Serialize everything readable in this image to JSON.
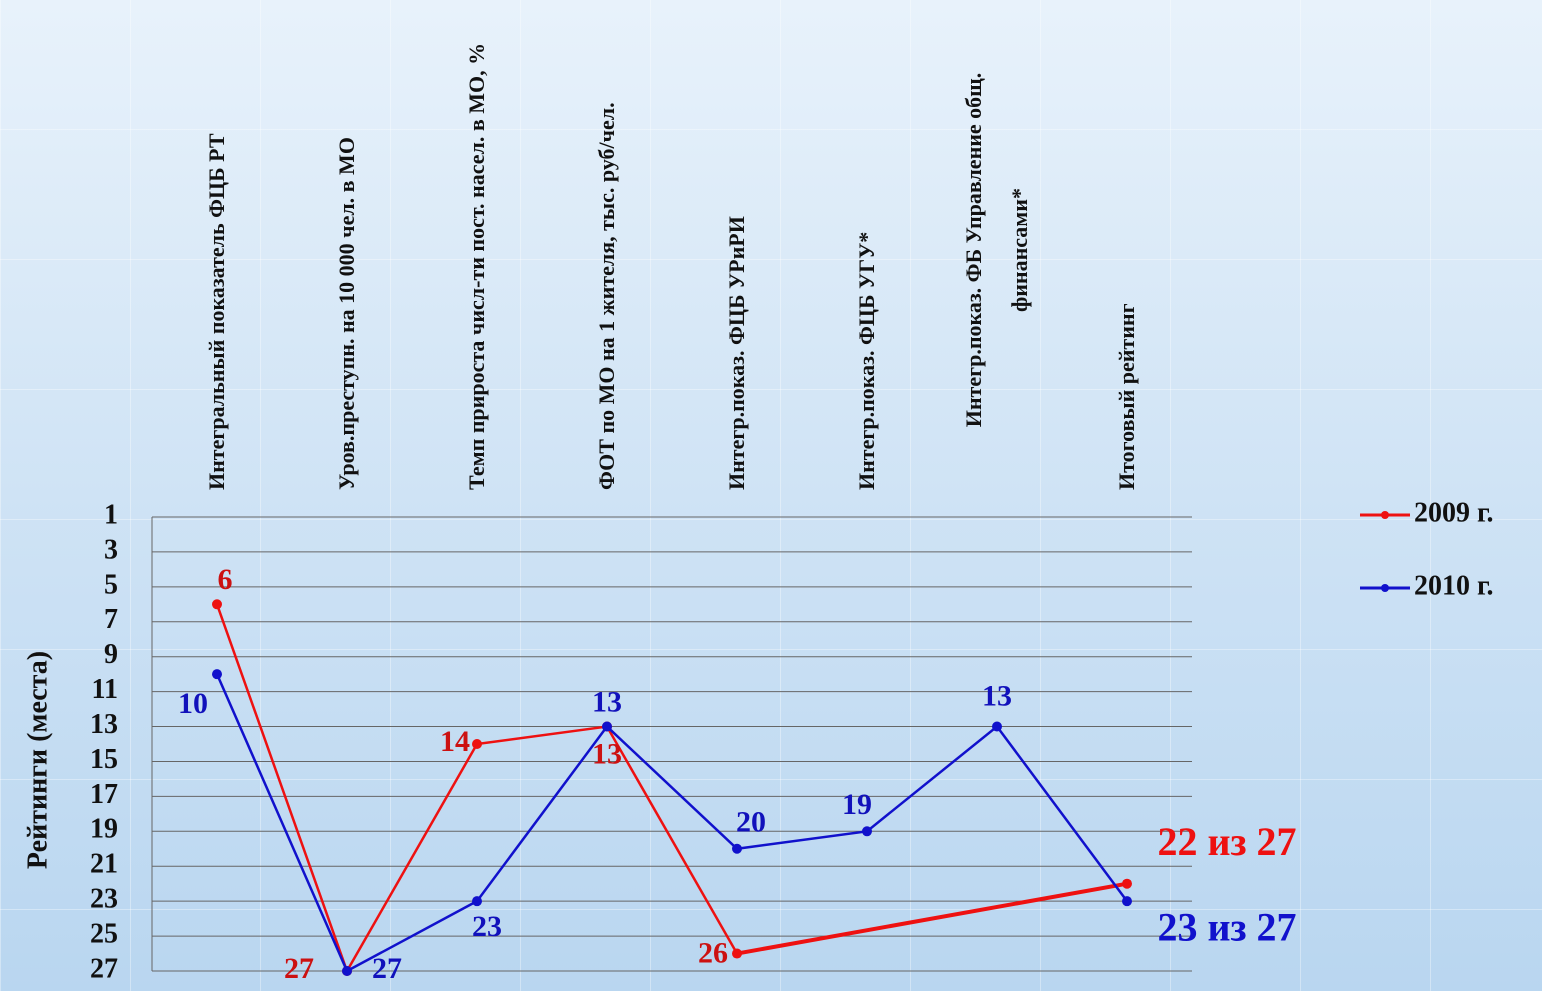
{
  "chart_data": {
    "type": "line",
    "y_label": "Рейтинги (места)",
    "categories": [
      "Интегральный показатель ФЦБ РТ",
      "Уров.преступн. на 10 000 чел. в МО",
      "Темп прироста числ-ти пост. насел. в МО, %",
      "ФОТ по МО на 1 жителя, тыс. руб/чел.",
      "Интегр.показ. ФЦБ УРиРИ",
      "Интегр.показ. ФЦБ УГУ*",
      "Интегр.показ. ФБ Управление общ. финансами*",
      "Итоговый рейтинг"
    ],
    "series": [
      {
        "name": "2009 г.",
        "color": "#ee1111",
        "label_color": "#cc1111",
        "values": [
          6,
          27,
          14,
          13,
          26,
          null,
          null,
          22
        ],
        "value_labels": [
          "6",
          "27",
          "14",
          "13",
          "26",
          null,
          null,
          "22 из 27"
        ]
      },
      {
        "name": "2010 г.",
        "color": "#1111cc",
        "label_color": "#1111bb",
        "values": [
          10,
          27,
          23,
          13,
          20,
          19,
          13,
          23
        ],
        "value_labels": [
          "10",
          "27",
          "23",
          "13",
          "20",
          "19",
          "13",
          "23 из 27"
        ]
      }
    ],
    "ylim": [
      1,
      27
    ],
    "y_inverted": true,
    "yticks": [
      1,
      3,
      5,
      7,
      9,
      11,
      13,
      15,
      17,
      19,
      21,
      23,
      25,
      27
    ],
    "grid": true,
    "span_gaps": true,
    "legend": "right"
  }
}
